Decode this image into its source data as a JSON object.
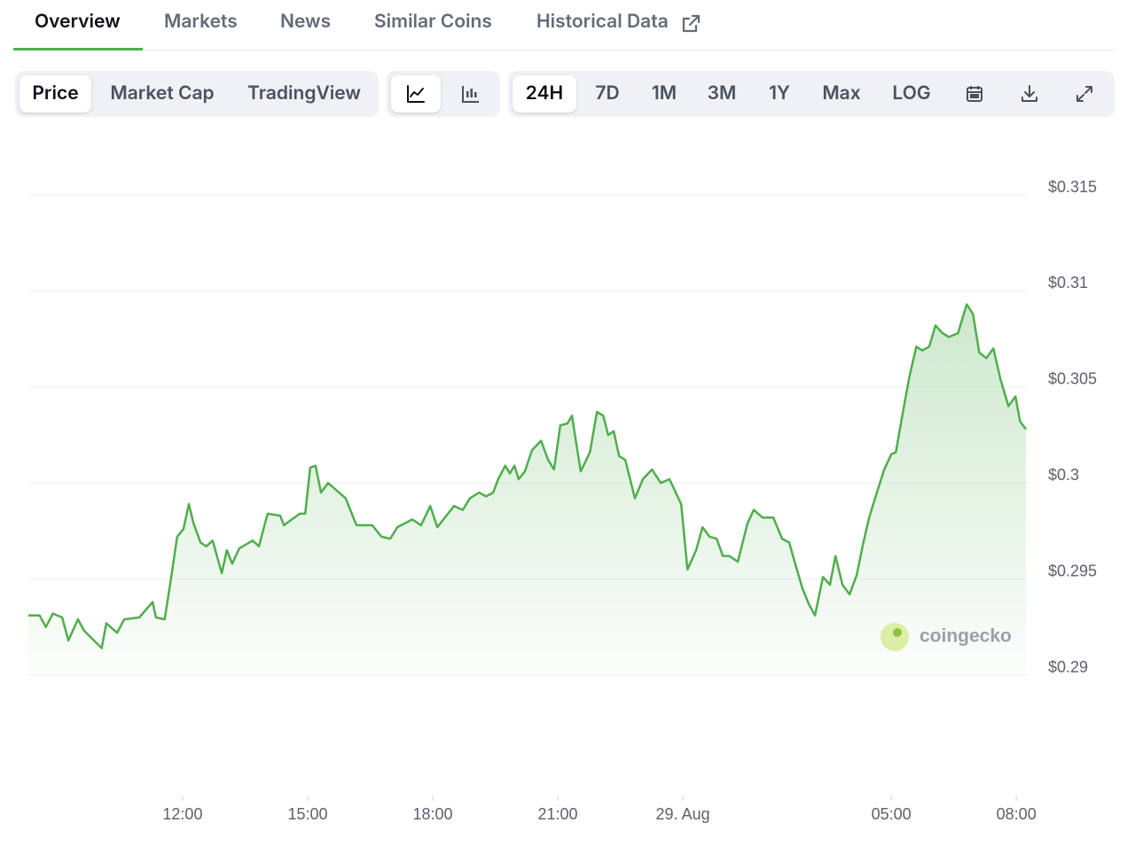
{
  "ui": {
    "tabs": [
      "Overview",
      "Markets",
      "News",
      "Similar Coins",
      "Historical Data"
    ],
    "chart_types": [
      "Price",
      "Market Cap",
      "TradingView"
    ],
    "ranges": [
      "24H",
      "7D",
      "1M",
      "3M",
      "1Y",
      "Max",
      "LOG"
    ],
    "watermark": "coingecko"
  },
  "chart_data": {
    "type": "line",
    "color": "#4fae4d",
    "x": [
      8.3,
      8.57,
      8.72,
      8.89,
      9.11,
      9.26,
      9.49,
      9.64,
      10.06,
      10.17,
      10.43,
      10.6,
      10.96,
      11.28,
      11.36,
      11.57,
      11.7,
      11.87,
      12.02,
      12.15,
      12.26,
      12.43,
      12.57,
      12.72,
      12.94,
      13.06,
      13.19,
      13.36,
      13.68,
      13.83,
      14.04,
      14.34,
      14.43,
      14.81,
      14.94,
      15.06,
      15.19,
      15.32,
      15.49,
      15.91,
      16.17,
      16.55,
      16.77,
      16.98,
      17.15,
      17.51,
      17.72,
      17.94,
      18.11,
      18.51,
      18.72,
      18.89,
      19.11,
      19.28,
      19.45,
      19.57,
      19.74,
      19.85,
      19.96,
      20.06,
      20.21,
      20.38,
      20.6,
      20.77,
      20.91,
      21.06,
      21.23,
      21.34,
      21.55,
      21.77,
      21.94,
      22.09,
      22.21,
      22.34,
      22.47,
      22.62,
      22.85,
      23.04,
      23.26,
      23.47,
      23.68,
      23.96,
      24.11,
      24.32,
      24.47,
      24.64,
      24.81,
      24.96,
      25.11,
      25.32,
      25.55,
      25.7,
      25.91,
      26.17,
      26.38,
      26.55,
      26.72,
      26.87,
      27.02,
      27.17,
      27.36,
      27.53,
      27.66,
      27.83,
      28.0,
      28.17,
      28.32,
      28.47,
      28.64,
      28.83,
      29.0,
      29.11,
      29.28,
      29.43,
      29.6,
      29.74,
      29.91,
      30.06,
      30.23,
      30.38,
      30.6,
      30.81,
      30.96,
      31.11,
      31.28,
      31.45,
      31.62,
      31.81,
      31.98,
      32.09,
      32.23
    ],
    "values": [
      0.2931,
      0.2931,
      0.2925,
      0.2932,
      0.293,
      0.2918,
      0.2929,
      0.2923,
      0.2914,
      0.2927,
      0.2922,
      0.2929,
      0.293,
      0.2938,
      0.293,
      0.2929,
      0.2947,
      0.2972,
      0.2976,
      0.2989,
      0.2979,
      0.2969,
      0.2967,
      0.297,
      0.2953,
      0.2965,
      0.2958,
      0.2966,
      0.297,
      0.2967,
      0.2984,
      0.2983,
      0.2978,
      0.2984,
      0.2984,
      0.3008,
      0.3009,
      0.2995,
      0.3,
      0.2992,
      0.2978,
      0.2978,
      0.2972,
      0.2971,
      0.2977,
      0.2981,
      0.2978,
      0.2988,
      0.2977,
      0.2988,
      0.2986,
      0.2992,
      0.2995,
      0.2993,
      0.2995,
      0.3002,
      0.3009,
      0.3005,
      0.3009,
      0.3002,
      0.3006,
      0.3017,
      0.3022,
      0.3012,
      0.3007,
      0.303,
      0.3031,
      0.3035,
      0.3006,
      0.3016,
      0.3037,
      0.3035,
      0.3025,
      0.3027,
      0.3014,
      0.3012,
      0.2992,
      0.3002,
      0.3007,
      0.3,
      0.3002,
      0.2989,
      0.2955,
      0.2965,
      0.2977,
      0.2972,
      0.2971,
      0.2962,
      0.2962,
      0.2959,
      0.2979,
      0.2986,
      0.2982,
      0.2982,
      0.2971,
      0.2969,
      0.2956,
      0.2945,
      0.2937,
      0.2931,
      0.2951,
      0.2947,
      0.2962,
      0.2947,
      0.2942,
      0.2952,
      0.2968,
      0.2982,
      0.2994,
      0.3007,
      0.3015,
      0.3016,
      0.3037,
      0.3055,
      0.3071,
      0.3069,
      0.3071,
      0.3082,
      0.3078,
      0.3076,
      0.3078,
      0.3093,
      0.3088,
      0.3068,
      0.3065,
      0.307,
      0.3054,
      0.304,
      0.3045,
      0.3032,
      0.3028
    ],
    "xlim": [
      8.3,
      32.23
    ],
    "xticks": [
      {
        "value": 12,
        "label": "12:00"
      },
      {
        "value": 15,
        "label": "15:00"
      },
      {
        "value": 18,
        "label": "18:00"
      },
      {
        "value": 21,
        "label": "21:00"
      },
      {
        "value": 24,
        "label": "29. Aug"
      },
      {
        "value": 29,
        "label": "05:00"
      },
      {
        "value": 32,
        "label": "08:00"
      }
    ],
    "ylim": [
      0.29,
      0.315
    ],
    "yticks": [
      {
        "value": 0.29,
        "label": "$0.29"
      },
      {
        "value": 0.295,
        "label": "$0.295"
      },
      {
        "value": 0.3,
        "label": "$0.3"
      },
      {
        "value": 0.305,
        "label": "$0.305"
      },
      {
        "value": 0.31,
        "label": "$0.31"
      },
      {
        "value": 0.315,
        "label": "$0.315"
      }
    ],
    "grid": true
  }
}
